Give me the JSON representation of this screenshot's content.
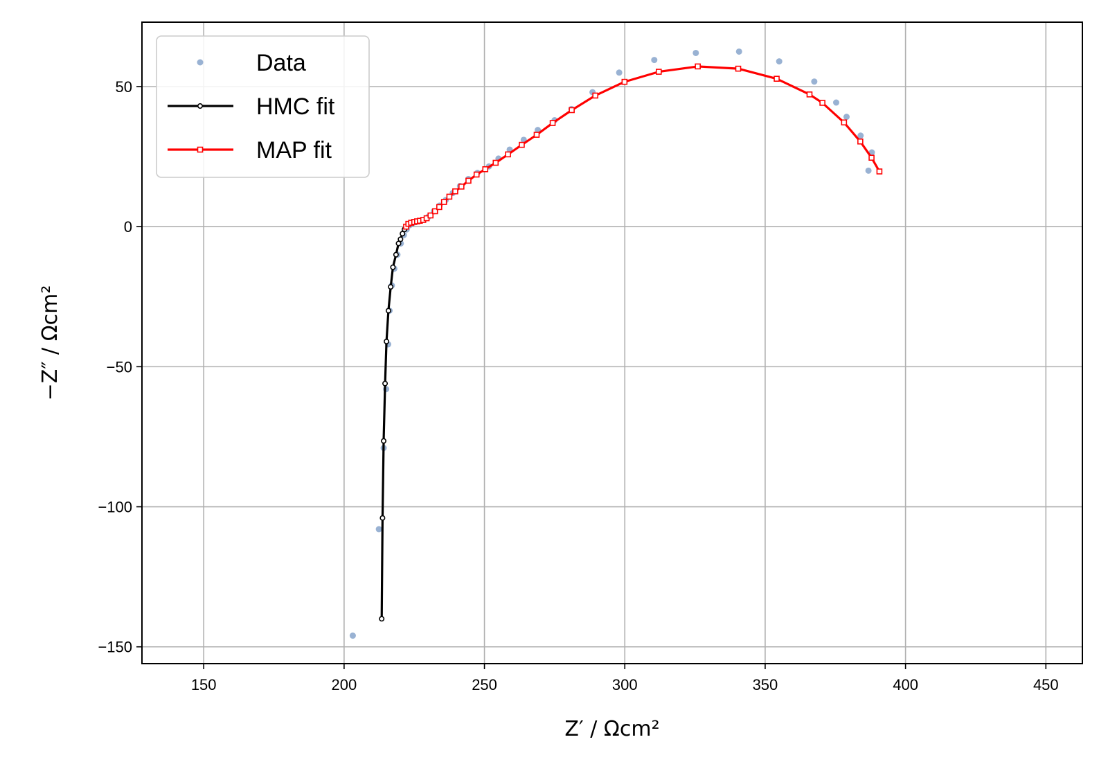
{
  "chart_data": {
    "type": "scatter",
    "xlabel": "Z′ / Ωcm²",
    "ylabel": "−Z″ / Ωcm²",
    "xlim": [
      128,
      463
    ],
    "ylim": [
      -156,
      73
    ],
    "xticks": [
      150,
      200,
      250,
      300,
      350,
      400,
      450
    ],
    "yticks": [
      -150,
      -100,
      -50,
      0,
      50
    ],
    "xtick_labels": [
      "150",
      "200",
      "250",
      "300",
      "350",
      "400",
      "450"
    ],
    "ytick_labels": [
      "−150",
      "−100",
      "−50",
      "0",
      "50"
    ],
    "grid": true,
    "legend_position": "upper-left",
    "series": [
      {
        "name": "Data",
        "kind": "scatter",
        "color": "#7f9fc8",
        "points": [
          [
            203.1,
            -146
          ],
          [
            212.4,
            -108
          ],
          [
            214.1,
            -79
          ],
          [
            215.0,
            -58
          ],
          [
            215.7,
            -42
          ],
          [
            216.2,
            -30
          ],
          [
            217.0,
            -21
          ],
          [
            217.9,
            -15
          ],
          [
            219.0,
            -10
          ],
          [
            220.2,
            -6
          ],
          [
            221.3,
            -3
          ],
          [
            222.3,
            -1
          ],
          [
            223.3,
            0.5
          ],
          [
            224.4,
            1.2
          ],
          [
            225.5,
            1.6
          ],
          [
            226.8,
            2.0
          ],
          [
            228.3,
            2.4
          ],
          [
            230.0,
            3.5
          ],
          [
            232.0,
            5.5
          ],
          [
            234.0,
            7.5
          ],
          [
            236.2,
            9.5
          ],
          [
            238.7,
            12
          ],
          [
            241.3,
            14.5
          ],
          [
            244.3,
            17
          ],
          [
            247.5,
            19.2
          ],
          [
            251.6,
            21.5
          ],
          [
            255.0,
            24.3
          ],
          [
            259.0,
            27.5
          ],
          [
            264.0,
            31
          ],
          [
            269.0,
            34.5
          ],
          [
            275.0,
            38
          ],
          [
            281.0,
            42
          ],
          [
            288.5,
            48
          ],
          [
            298.0,
            55
          ],
          [
            310.5,
            59.5
          ],
          [
            325.3,
            62
          ],
          [
            340.7,
            62.5
          ],
          [
            355.0,
            59
          ],
          [
            367.5,
            51.8
          ],
          [
            375.3,
            44.3
          ],
          [
            379.0,
            39.2
          ],
          [
            384.0,
            32.5
          ],
          [
            388.0,
            26.5
          ],
          [
            386.8,
            20
          ]
        ]
      },
      {
        "name": "HMC fit",
        "kind": "line",
        "color": "#000000",
        "marker": "circle",
        "points": [
          [
            213.4,
            -140
          ],
          [
            213.7,
            -104
          ],
          [
            214.1,
            -76.5
          ],
          [
            214.6,
            -56
          ],
          [
            215.1,
            -41
          ],
          [
            215.8,
            -30
          ],
          [
            216.6,
            -21.5
          ],
          [
            217.4,
            -14.5
          ],
          [
            218.5,
            -10
          ],
          [
            219.4,
            -6
          ],
          [
            220.1,
            -4.5
          ],
          [
            220.8,
            -2.5
          ],
          [
            221.5,
            -1
          ],
          [
            222.1,
            0
          ]
        ]
      },
      {
        "name": "MAP fit",
        "kind": "line",
        "color": "#ff0000",
        "marker": "square",
        "points": [
          [
            222.1,
            0
          ],
          [
            222.9,
            1.0
          ],
          [
            223.9,
            1.4
          ],
          [
            225.0,
            1.7
          ],
          [
            226.0,
            1.9
          ],
          [
            227.0,
            2.1
          ],
          [
            228.2,
            2.4
          ],
          [
            229.4,
            3.0
          ],
          [
            230.8,
            4.0
          ],
          [
            232.4,
            5.5
          ],
          [
            233.9,
            7.0
          ],
          [
            235.6,
            8.8
          ],
          [
            237.5,
            10.7
          ],
          [
            239.6,
            12.6
          ],
          [
            241.8,
            14.3
          ],
          [
            244.3,
            16.4
          ],
          [
            247.2,
            18.6
          ],
          [
            250.3,
            20.5
          ],
          [
            254.0,
            22.8
          ],
          [
            258.4,
            25.8
          ],
          [
            263.3,
            29.2
          ],
          [
            268.6,
            32.8
          ],
          [
            274.3,
            37.0
          ],
          [
            281.1,
            41.6
          ],
          [
            289.5,
            46.8
          ],
          [
            299.9,
            51.7
          ],
          [
            312.1,
            55.3
          ],
          [
            326.0,
            57.2
          ],
          [
            340.4,
            56.4
          ],
          [
            354.1,
            52.8
          ],
          [
            365.8,
            47.2
          ],
          [
            370.4,
            44.2
          ],
          [
            378.1,
            37.2
          ],
          [
            383.9,
            30.4
          ],
          [
            387.9,
            24.6
          ],
          [
            390.7,
            19.7
          ]
        ]
      }
    ]
  }
}
